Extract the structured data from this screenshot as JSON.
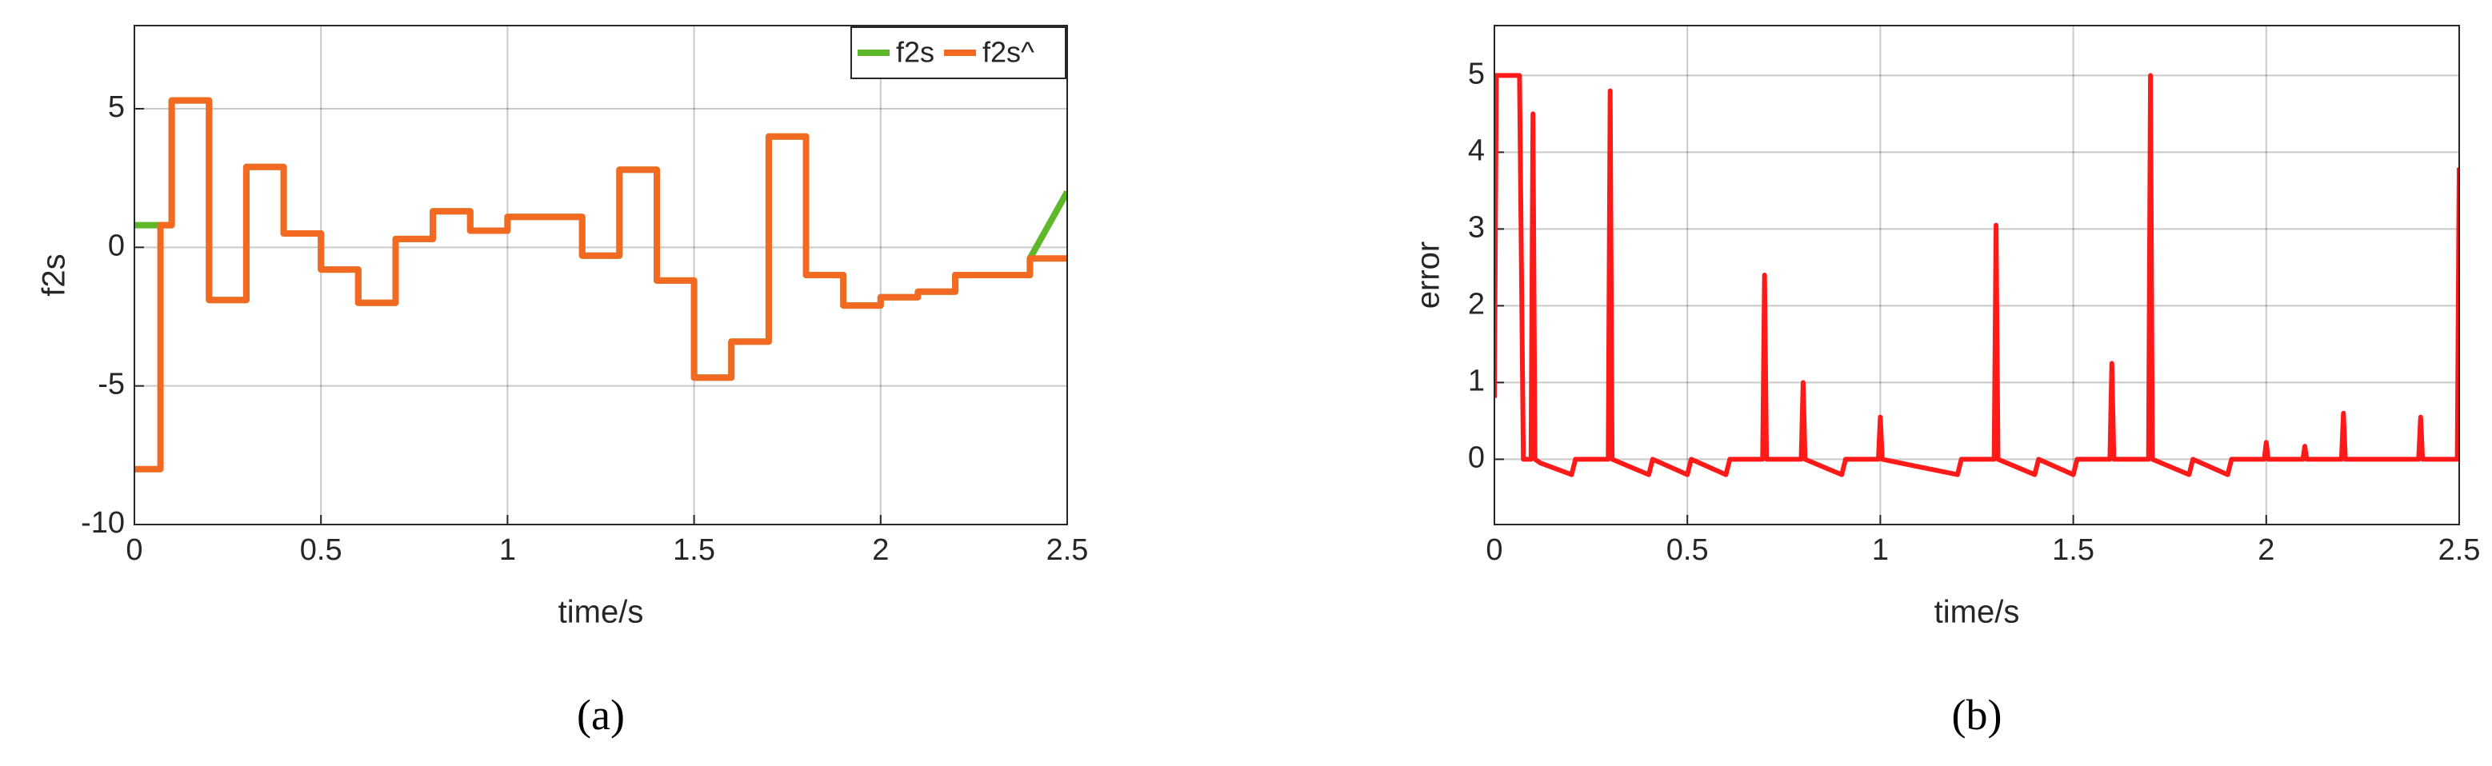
{
  "chart_data": [
    {
      "type": "line",
      "caption": "(a)",
      "xlabel": "time/s",
      "ylabel": "f2s",
      "xlim": [
        0,
        2.5
      ],
      "ylim": [
        -10,
        8
      ],
      "xticks": [
        0,
        0.5,
        1,
        1.5,
        2,
        2.5
      ],
      "yticks": [
        -10,
        -5,
        0,
        5
      ],
      "grid": true,
      "legend": "upper right",
      "x": [
        0,
        0.07,
        0.07,
        0.1,
        0.1,
        0.2,
        0.2,
        0.3,
        0.3,
        0.4,
        0.4,
        0.5,
        0.5,
        0.6,
        0.6,
        0.7,
        0.7,
        0.8,
        0.8,
        0.9,
        0.9,
        1.0,
        1.0,
        1.2,
        1.2,
        1.3,
        1.3,
        1.4,
        1.4,
        1.5,
        1.5,
        1.6,
        1.6,
        1.7,
        1.7,
        1.8,
        1.8,
        1.9,
        1.9,
        2.0,
        2.0,
        2.1,
        2.1,
        2.2,
        2.2,
        2.4,
        2.4,
        2.5
      ],
      "series": [
        {
          "name": "f2s",
          "color": "#5fb82a",
          "values": [
            0.8,
            0.8,
            0.8,
            0.8,
            5.3,
            5.3,
            -1.9,
            -1.9,
            2.9,
            2.9,
            0.5,
            0.5,
            -0.8,
            -0.8,
            -2,
            -2,
            0.3,
            0.3,
            1.3,
            1.3,
            0.6,
            0.6,
            1.1,
            1.1,
            -0.3,
            -0.3,
            2.8,
            2.8,
            -1.2,
            -1.2,
            -4.7,
            -4.7,
            -3.4,
            -3.4,
            4,
            4,
            -1,
            -1,
            -2.1,
            -2.1,
            -1.8,
            -1.8,
            -1.6,
            -1.6,
            -1,
            -1,
            -0.4,
            2
          ]
        },
        {
          "name": "f2s^",
          "color": "#f26a21",
          "values": [
            -8,
            -8,
            0.8,
            0.8,
            5.3,
            5.3,
            -1.9,
            -1.9,
            2.9,
            2.9,
            0.5,
            0.5,
            -0.8,
            -0.8,
            -2,
            -2,
            0.3,
            0.3,
            1.3,
            1.3,
            0.6,
            0.6,
            1.1,
            1.1,
            -0.3,
            -0.3,
            2.8,
            2.8,
            -1.2,
            -1.2,
            -4.7,
            -4.7,
            -3.4,
            -3.4,
            4,
            4,
            -1,
            -1,
            -2.1,
            -2.1,
            -1.8,
            -1.8,
            -1.6,
            -1.6,
            -1,
            -1,
            -0.4,
            -0.4
          ]
        }
      ]
    },
    {
      "type": "line",
      "caption": "(b)",
      "xlabel": "time/s",
      "ylabel": "error",
      "xlim": [
        0,
        2.5
      ],
      "ylim": [
        -0.85,
        5.65
      ],
      "xticks": [
        0,
        0.5,
        1,
        1.5,
        2,
        2.5
      ],
      "yticks": [
        0,
        1,
        2,
        3,
        4,
        5
      ],
      "grid": true,
      "color": "#ff1a1a",
      "x": [
        0,
        0.005,
        0.065,
        0.075,
        0.095,
        0.1,
        0.105,
        0.12,
        0.2,
        0.21,
        0.295,
        0.3,
        0.305,
        0.4,
        0.41,
        0.5,
        0.51,
        0.6,
        0.61,
        0.695,
        0.7,
        0.705,
        0.795,
        0.8,
        0.805,
        0.9,
        0.91,
        0.995,
        1.0,
        1.005,
        1.2,
        1.21,
        1.295,
        1.3,
        1.305,
        1.4,
        1.41,
        1.5,
        1.51,
        1.595,
        1.6,
        1.605,
        1.695,
        1.7,
        1.705,
        1.8,
        1.81,
        1.9,
        1.91,
        1.995,
        2.0,
        2.005,
        2.095,
        2.1,
        2.105,
        2.195,
        2.2,
        2.205,
        2.395,
        2.4,
        2.405,
        2.495,
        2.5
      ],
      "values": [
        0.8,
        5,
        5,
        0,
        0,
        4.5,
        0,
        -0.05,
        -0.2,
        0,
        0,
        4.8,
        0,
        -0.2,
        0,
        -0.2,
        0,
        -0.2,
        0,
        0,
        2.4,
        0,
        0,
        1.0,
        0,
        -0.2,
        0,
        0,
        0.55,
        0,
        -0.2,
        0,
        0,
        3.05,
        0,
        -0.2,
        0,
        -0.2,
        0,
        0,
        1.25,
        0,
        0,
        5.0,
        0,
        -0.2,
        0,
        -0.2,
        0,
        0,
        0.22,
        0,
        0,
        0.17,
        0,
        0,
        0.6,
        0,
        0,
        0.55,
        0,
        0,
        3.8
      ]
    }
  ]
}
